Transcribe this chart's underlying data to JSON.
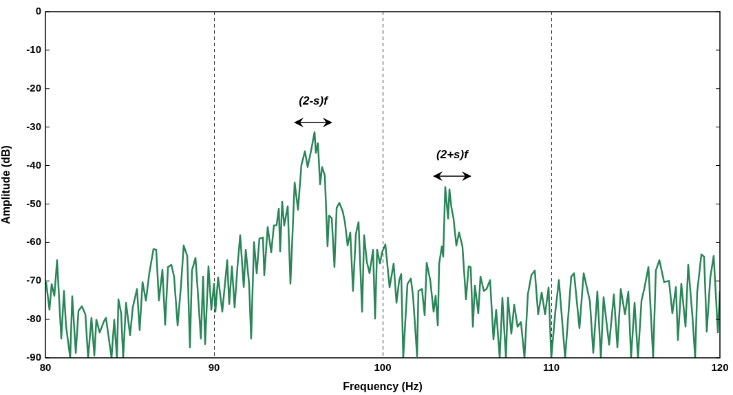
{
  "chart_data": {
    "type": "line",
    "xlabel": "Frequency (Hz)",
    "ylabel": "Amplitude (dB)",
    "xlim": [
      80,
      120
    ],
    "xticks": [
      80,
      90,
      100,
      110,
      120
    ],
    "ylim": [
      -90,
      0
    ],
    "yticks": [
      -90,
      -80,
      -70,
      -60,
      -50,
      -40,
      -30,
      -20,
      -10,
      0
    ],
    "grid": "x",
    "legend": false,
    "marker": "none",
    "line_style": "solid",
    "annotations": [
      "(2-s)f",
      "(2+s)f"
    ],
    "series": [
      {
        "color": "#2a8558",
        "x": [
          80.04,
          80.24,
          80.37,
          80.53,
          80.69,
          80.94,
          81.1,
          81.22,
          81.47,
          81.59,
          81.8,
          81.96,
          82.16,
          82.37,
          82.53,
          82.73,
          82.9,
          83.02,
          83.22,
          83.47,
          83.59,
          83.92,
          84.08,
          84.24,
          84.33,
          84.49,
          84.61,
          84.78,
          85.02,
          85.18,
          85.43,
          85.59,
          85.76,
          85.96,
          86.16,
          86.41,
          86.57,
          86.73,
          86.94,
          87.1,
          87.27,
          87.47,
          87.63,
          87.84,
          88.04,
          88.2,
          88.41,
          88.57,
          88.69,
          88.9,
          89.02,
          89.22,
          89.35,
          89.47,
          89.67,
          89.84,
          90,
          90.08,
          90.24,
          90.49,
          90.78,
          90.9,
          91.06,
          91.22,
          91.39,
          91.55,
          91.76,
          91.88,
          92.08,
          92.2,
          92.37,
          92.53,
          92.69,
          92.9,
          92.98,
          93.18,
          93.39,
          93.55,
          93.71,
          93.84,
          93.92,
          94.04,
          94.16,
          94.37,
          94.53,
          94.78,
          94.98,
          95.18,
          95.39,
          95.55,
          95.76,
          95.96,
          96.04,
          96.16,
          96.29,
          96.41,
          96.57,
          96.73,
          96.82,
          96.98,
          97.14,
          97.27,
          97.43,
          97.63,
          97.76,
          97.92,
          98.08,
          98.24,
          98.41,
          98.57,
          98.78,
          98.9,
          99.06,
          99.22,
          99.43,
          99.55,
          99.67,
          99.84,
          99.96,
          100.16,
          100.41,
          100.65,
          100.82,
          100.98,
          101.1,
          101.22,
          101.47,
          101.67,
          101.8,
          101.92,
          102.04,
          102.12,
          102.33,
          102.49,
          102.61,
          102.82,
          103.02,
          103.14,
          103.27,
          103.35,
          103.51,
          103.59,
          103.71,
          103.88,
          103.96,
          104.08,
          104.2,
          104.37,
          104.53,
          104.73,
          104.94,
          105.1,
          105.22,
          105.35,
          105.47,
          105.67,
          105.8,
          106,
          106.16,
          106.37,
          106.57,
          106.73,
          106.94,
          107.1,
          107.31,
          107.43,
          107.63,
          107.8,
          108,
          108.2,
          108.41,
          108.61,
          108.82,
          109.02,
          109.22,
          109.43,
          109.63,
          109.84,
          110,
          110.24,
          110.45,
          110.82,
          111.18,
          111.35,
          111.67,
          111.92,
          112.29,
          112.49,
          112.73,
          112.94,
          113.1,
          113.43,
          113.71,
          113.92,
          114.12,
          114.37,
          114.57,
          114.73,
          114.94,
          115.14,
          115.35,
          115.51,
          115.76,
          116.04,
          116.2,
          116.41,
          116.69,
          116.98,
          117.18,
          117.39,
          117.51,
          117.71,
          117.96,
          118.12,
          118.37,
          118.53,
          118.65,
          118.9,
          119.06,
          119.22,
          119.43,
          119.63,
          119.88,
          120
        ],
        "values": [
          -70.3,
          -77.5,
          -70.8,
          -73.9,
          -64.6,
          -85,
          -72.6,
          -81.6,
          -90,
          -74,
          -88.7,
          -77.8,
          -76.6,
          -78.7,
          -90,
          -79.6,
          -89.4,
          -80.1,
          -83.4,
          -80.5,
          -79.6,
          -90,
          -80.1,
          -90,
          -74.8,
          -78.4,
          -90,
          -75.7,
          -84.1,
          -76.9,
          -72.1,
          -82.8,
          -70.3,
          -75.1,
          -68,
          -61.7,
          -61.9,
          -75.1,
          -67.1,
          -81.4,
          -66.4,
          -65.8,
          -68.9,
          -81.6,
          -71.2,
          -60.8,
          -63.5,
          -87.3,
          -67.3,
          -64,
          -71.7,
          -85,
          -68.9,
          -86.4,
          -66.2,
          -77.5,
          -70.7,
          -78,
          -69.1,
          -78,
          -64.6,
          -76,
          -66.2,
          -76.9,
          -66.2,
          -58.1,
          -71.6,
          -61.9,
          -70.8,
          -85,
          -59.9,
          -68,
          -59,
          -58.7,
          -68.5,
          -56,
          -62.6,
          -55.6,
          -55.5,
          -51.2,
          -62.3,
          -49.4,
          -55.6,
          -50.6,
          -70.7,
          -44.4,
          -51.5,
          -39.9,
          -36.3,
          -40.4,
          -36,
          -31.3,
          -36.7,
          -34.2,
          -44.9,
          -40.4,
          -42.6,
          -61,
          -53,
          -53.7,
          -66.4,
          -51,
          -49.7,
          -51.9,
          -54.7,
          -60.8,
          -57.4,
          -72.6,
          -57.8,
          -54.7,
          -78,
          -58.1,
          -65,
          -68,
          -61.9,
          -79.8,
          -61.9,
          -65.5,
          -62.6,
          -60.5,
          -71.7,
          -65.5,
          -75.7,
          -69.8,
          -68.2,
          -90,
          -70.8,
          -69.4,
          -73.9,
          -81.6,
          -89.6,
          -72.6,
          -72.1,
          -78.9,
          -65.3,
          -69.8,
          -78,
          -73.9,
          -81.6,
          -65.5,
          -61,
          -63.7,
          -45.6,
          -53.8,
          -46.2,
          -51,
          -53.7,
          -60.8,
          -57.4,
          -61,
          -74.8,
          -66.2,
          -66.4,
          -81.9,
          -71.2,
          -78.4,
          -68.9,
          -72.6,
          -72.1,
          -69.8,
          -85.2,
          -77.5,
          -90,
          -74.4,
          -90,
          -74.4,
          -83.7,
          -76.2,
          -81.9,
          -80.7,
          -90,
          -73.5,
          -68.5,
          -67.3,
          -78.7,
          -73,
          -78.7,
          -71.7,
          -90,
          -78,
          -69.8,
          -90,
          -68.9,
          -68,
          -82.3,
          -68,
          -75.3,
          -88.7,
          -72.8,
          -90,
          -74.2,
          -86.6,
          -73.5,
          -87.3,
          -72.1,
          -78.7,
          -72.8,
          -90,
          -75.7,
          -90,
          -75.1,
          -72.1,
          -66.4,
          -90,
          -67.3,
          -64.6,
          -70.3,
          -70,
          -78.4,
          -71.6,
          -85.4,
          -70.7,
          -81.9,
          -65.8,
          -79.2,
          -90,
          -73,
          -63.1,
          -63.7,
          -83.2,
          -69.1,
          -63.5,
          -83.4,
          -72.6
        ]
      }
    ]
  }
}
